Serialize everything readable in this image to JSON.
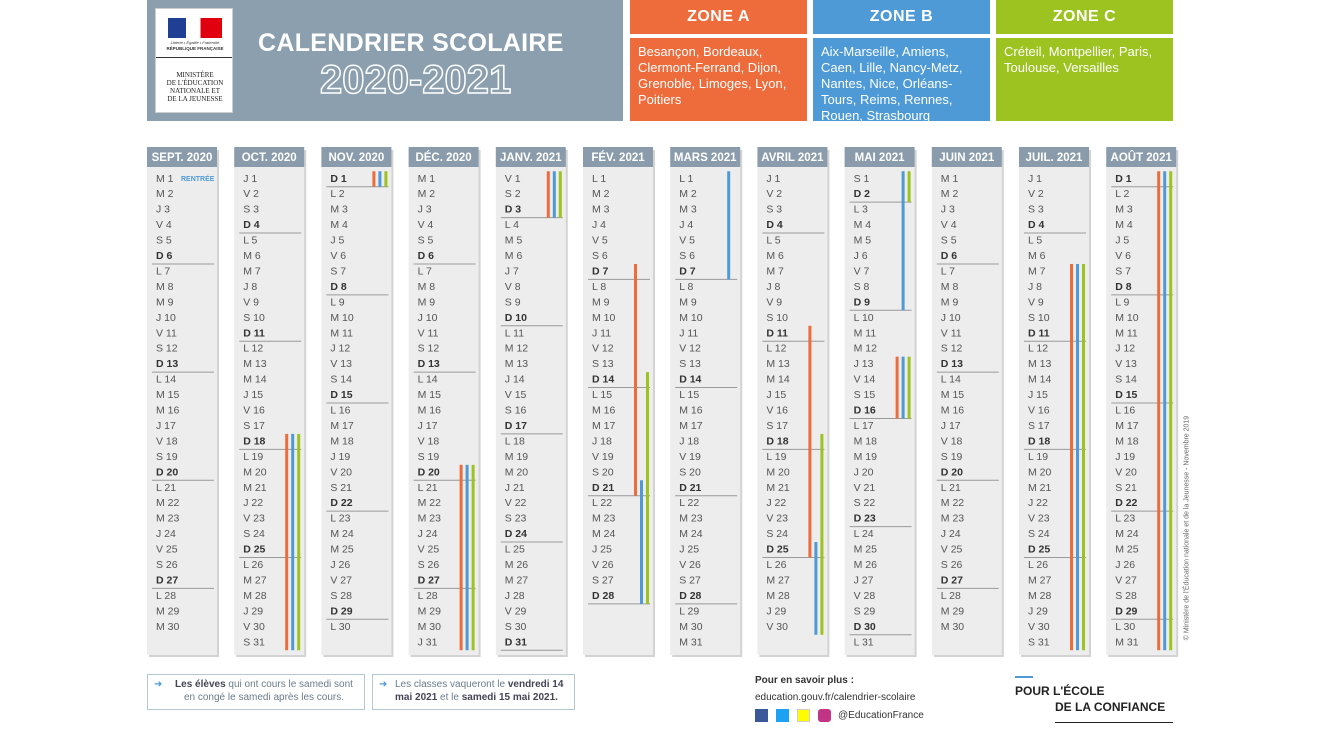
{
  "logo": {
    "motto": "Liberté • Égalité • Fraternité",
    "republic": "RÉPUBLIQUE FRANÇAISE",
    "ministry": [
      "MINISTÈRE",
      "DE L'ÉDUCATION",
      "NATIONALE ET",
      "DE LA JEUNESSE"
    ]
  },
  "header": {
    "title": "CALENDRIER SCOLAIRE",
    "years": "2020-2021"
  },
  "zones": [
    {
      "name": "ZONE A",
      "color": "#ee6b3b",
      "cities": "Besançon, Bordeaux, Clermont-Ferrand, Dijon, Grenoble, Limoges, Lyon, Poitiers"
    },
    {
      "name": "ZONE B",
      "color": "#4d9ad6",
      "cities": "Aix-Marseille, Amiens, Caen, Lille, Nancy-Metz, Nantes, Nice, Orléans-Tours, Reims, Rennes, Rouen, Strasbourg"
    },
    {
      "name": "ZONE C",
      "color": "#9cc31f",
      "cities": "Créteil, Montpellier, Paris, Toulouse, Versailles"
    }
  ],
  "months": [
    {
      "label": "SEPT. 2020",
      "first_day_note": "RENTRÉE",
      "days": [
        "M 1",
        "M 2",
        "J 3",
        "V 4",
        "S 5",
        "D 6",
        "L 7",
        "M 8",
        "M 9",
        "J 10",
        "V 11",
        "S 12",
        "D 13",
        "L 14",
        "M 15",
        "M 16",
        "J 17",
        "V 18",
        "S 19",
        "D 20",
        "L 21",
        "M 22",
        "M 23",
        "J 24",
        "V 25",
        "S 26",
        "D 27",
        "L 28",
        "M 29",
        "M 30"
      ],
      "vacations": []
    },
    {
      "label": "OCT. 2020",
      "days": [
        "J 1",
        "V 2",
        "S 3",
        "D 4",
        "L 5",
        "M 6",
        "M 7",
        "J 8",
        "V 9",
        "S 10",
        "D 11",
        "L 12",
        "M 13",
        "M 14",
        "J 15",
        "V 16",
        "S 17",
        "D 18",
        "L 19",
        "M 20",
        "M 21",
        "J 22",
        "V 23",
        "S 24",
        "D 25",
        "L 26",
        "M 27",
        "M 28",
        "J 29",
        "V 30",
        "S 31"
      ],
      "vacations": [
        {
          "color": "#ee6b3b",
          "from": 18,
          "to": 31
        },
        {
          "color": "#4d9ad6",
          "from": 18,
          "to": 31
        },
        {
          "color": "#9cc31f",
          "from": 18,
          "to": 31
        }
      ]
    },
    {
      "label": "NOV. 2020",
      "days": [
        "D 1",
        "L 2",
        "M 3",
        "M 4",
        "J 5",
        "V 6",
        "S 7",
        "D 8",
        "L 9",
        "M 10",
        "M 11",
        "J 12",
        "V 13",
        "S 14",
        "D 15",
        "L 16",
        "M 17",
        "M 18",
        "J 19",
        "V 20",
        "S 21",
        "D 22",
        "L 23",
        "M 24",
        "M 25",
        "J 26",
        "V 27",
        "S 28",
        "D 29",
        "L 30"
      ],
      "vacations": [
        {
          "color": "#ee6b3b",
          "from": 1,
          "to": 1
        },
        {
          "color": "#4d9ad6",
          "from": 1,
          "to": 1
        },
        {
          "color": "#9cc31f",
          "from": 1,
          "to": 1
        }
      ]
    },
    {
      "label": "DÉC. 2020",
      "days": [
        "M 1",
        "M 2",
        "J 3",
        "V 4",
        "S 5",
        "D 6",
        "L 7",
        "M 8",
        "M 9",
        "J 10",
        "V 11",
        "S 12",
        "D 13",
        "L 14",
        "M 15",
        "M 16",
        "J 17",
        "V 18",
        "S 19",
        "D 20",
        "L 21",
        "M 22",
        "M 23",
        "J 24",
        "V 25",
        "S 26",
        "D 27",
        "L 28",
        "M 29",
        "M 30",
        "J 31"
      ],
      "vacations": [
        {
          "color": "#ee6b3b",
          "from": 20,
          "to": 31
        },
        {
          "color": "#4d9ad6",
          "from": 20,
          "to": 31
        },
        {
          "color": "#9cc31f",
          "from": 20,
          "to": 31
        }
      ]
    },
    {
      "label": "JANV. 2021",
      "days": [
        "V 1",
        "S 2",
        "D 3",
        "L 4",
        "M 5",
        "M 6",
        "J 7",
        "V 8",
        "S 9",
        "D 10",
        "L 11",
        "M 12",
        "M 13",
        "J 14",
        "V 15",
        "S 16",
        "D 17",
        "L 18",
        "M 19",
        "M 20",
        "J 21",
        "V 22",
        "S 23",
        "D 24",
        "L 25",
        "M 26",
        "M 27",
        "J 28",
        "V 29",
        "S 30",
        "D 31"
      ],
      "vacations": [
        {
          "color": "#ee6b3b",
          "from": 1,
          "to": 3
        },
        {
          "color": "#4d9ad6",
          "from": 1,
          "to": 3
        },
        {
          "color": "#9cc31f",
          "from": 1,
          "to": 3
        }
      ]
    },
    {
      "label": "FÉV. 2021",
      "days": [
        "L 1",
        "M 2",
        "M 3",
        "J 4",
        "V 5",
        "S 6",
        "D 7",
        "L 8",
        "M 9",
        "M 10",
        "J 11",
        "V 12",
        "S 13",
        "D 14",
        "L 15",
        "M 16",
        "M 17",
        "J 18",
        "V 19",
        "S 20",
        "D 21",
        "L 22",
        "M 23",
        "M 24",
        "J 25",
        "V 26",
        "S 27",
        "D 28"
      ],
      "vacations": [
        {
          "color": "#ee6b3b",
          "from": 7,
          "to": 21
        },
        {
          "color": "#4d9ad6",
          "from": 21,
          "to": 28
        },
        {
          "color": "#9cc31f",
          "from": 14,
          "to": 28
        }
      ]
    },
    {
      "label": "MARS 2021",
      "days": [
        "L 1",
        "M 2",
        "M 3",
        "J 4",
        "V 5",
        "S 6",
        "D 7",
        "L 8",
        "M 9",
        "M 10",
        "J 11",
        "V 12",
        "S 13",
        "D 14",
        "L 15",
        "M 16",
        "M 17",
        "J 18",
        "V 19",
        "S 20",
        "D 21",
        "L 22",
        "M 23",
        "M 24",
        "J 25",
        "V 26",
        "S 27",
        "D 28",
        "L 29",
        "M 30",
        "M 31"
      ],
      "vacations": [
        {
          "color": "#4d9ad6",
          "from": 1,
          "to": 7
        }
      ]
    },
    {
      "label": "AVRIL 2021",
      "days": [
        "J 1",
        "V 2",
        "S 3",
        "D 4",
        "L 5",
        "M 6",
        "M 7",
        "J 8",
        "V 9",
        "S 10",
        "D 11",
        "L 12",
        "M 13",
        "M 14",
        "J 15",
        "V 16",
        "S 17",
        "D 18",
        "L 19",
        "M 20",
        "M 21",
        "J 22",
        "V 23",
        "S 24",
        "D 25",
        "L 26",
        "M 27",
        "M 28",
        "J 29",
        "V 30"
      ],
      "vacations": [
        {
          "color": "#ee6b3b",
          "from": 11,
          "to": 25
        },
        {
          "color": "#4d9ad6",
          "from": 25,
          "to": 30
        },
        {
          "color": "#9cc31f",
          "from": 18,
          "to": 30
        }
      ]
    },
    {
      "label": "MAI 2021",
      "days": [
        "S 1",
        "D 2",
        "L 3",
        "M 4",
        "M 5",
        "J 6",
        "V 7",
        "S 8",
        "D 9",
        "L 10",
        "M 11",
        "M 12",
        "J 13",
        "V 14",
        "S 15",
        "D 16",
        "L 17",
        "M 18",
        "M 19",
        "J 20",
        "V 21",
        "S 22",
        "D 23",
        "L 24",
        "M 25",
        "M 26",
        "J 27",
        "V 28",
        "S 29",
        "D 30",
        "L 31"
      ],
      "vacations": [
        {
          "color": "#4d9ad6",
          "from": 1,
          "to": 9
        },
        {
          "color": "#9cc31f",
          "from": 1,
          "to": 2
        },
        {
          "color": "#ee6b3b",
          "from": 13,
          "to": 16
        },
        {
          "color": "#4d9ad6",
          "from": 13,
          "to": 16
        },
        {
          "color": "#9cc31f",
          "from": 13,
          "to": 16
        }
      ]
    },
    {
      "label": "JUIN 2021",
      "days": [
        "M 1",
        "M 2",
        "J 3",
        "V 4",
        "S 5",
        "D 6",
        "L 7",
        "M 8",
        "M 9",
        "J 10",
        "V 11",
        "S 12",
        "D 13",
        "L 14",
        "M 15",
        "M 16",
        "J 17",
        "V 18",
        "S 19",
        "D 20",
        "L 21",
        "M 22",
        "M 23",
        "J 24",
        "V 25",
        "S 26",
        "D 27",
        "L 28",
        "M 29",
        "M 30"
      ],
      "vacations": []
    },
    {
      "label": "JUIL. 2021",
      "days": [
        "J 1",
        "V 2",
        "S 3",
        "D 4",
        "L 5",
        "M 6",
        "M 7",
        "J 8",
        "V 9",
        "S 10",
        "D 11",
        "L 12",
        "M 13",
        "M 14",
        "J 15",
        "V 16",
        "S 17",
        "D 18",
        "L 19",
        "M 20",
        "M 21",
        "J 22",
        "V 23",
        "S 24",
        "D 25",
        "L 26",
        "M 27",
        "M 28",
        "J 29",
        "V 30",
        "S 31"
      ],
      "vacations": [
        {
          "color": "#ee6b3b",
          "from": 7,
          "to": 31
        },
        {
          "color": "#4d9ad6",
          "from": 7,
          "to": 31
        },
        {
          "color": "#9cc31f",
          "from": 7,
          "to": 31
        }
      ]
    },
    {
      "label": "AOÛT 2021",
      "days": [
        "D 1",
        "L 2",
        "M 3",
        "M 4",
        "J 5",
        "V 6",
        "S 7",
        "D 8",
        "L 9",
        "M 10",
        "M 11",
        "J 12",
        "V 13",
        "S 14",
        "D 15",
        "L 16",
        "M 17",
        "M 18",
        "J 19",
        "V 20",
        "S 21",
        "D 22",
        "L 23",
        "M 24",
        "M 25",
        "J 26",
        "V 27",
        "S 28",
        "D 29",
        "L 30",
        "M 31"
      ],
      "vacations": [
        {
          "color": "#ee6b3b",
          "from": 1,
          "to": 31
        },
        {
          "color": "#4d9ad6",
          "from": 1,
          "to": 31
        },
        {
          "color": "#9cc31f",
          "from": 1,
          "to": 31
        }
      ]
    }
  ],
  "notes": [
    {
      "parts": [
        {
          "text": "Les élèves",
          "bold": true
        },
        {
          "text": " qui ont cours le samedi sont en congé le samedi après les cours."
        }
      ]
    },
    {
      "parts": [
        {
          "text": "Les classes vaqueront le "
        },
        {
          "text": "vendredi 14 mai 2021",
          "bold": true
        },
        {
          "text": " et le "
        },
        {
          "text": "samedi 15 mai 2021.",
          "bold": true
        }
      ]
    }
  ],
  "more_info": {
    "title": "Pour en savoir plus :",
    "url": "education.gouv.fr/calendrier-scolaire",
    "handle": "@EducationFrance"
  },
  "slogan": [
    "POUR L'ÉCOLE",
    "DE LA CONFIANCE"
  ],
  "copyright": "© Ministère de l'Éducation nationale et de la Jeunesse - Novembre 2019"
}
